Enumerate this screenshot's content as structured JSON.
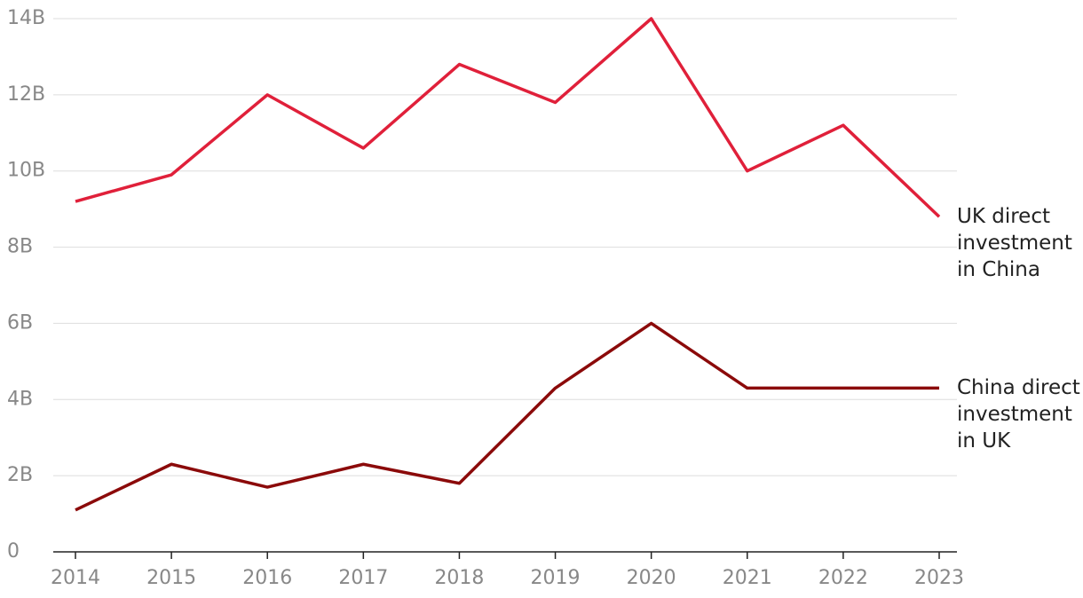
{
  "chart_data": {
    "type": "line",
    "x": [
      2014,
      2015,
      2016,
      2017,
      2018,
      2019,
      2020,
      2021,
      2022,
      2023
    ],
    "xlim": [
      2014,
      2023
    ],
    "xticks": [
      2014,
      2015,
      2016,
      2017,
      2018,
      2019,
      2020,
      2021,
      2022,
      2023
    ],
    "ylim": [
      0,
      14
    ],
    "yticks": [
      0,
      {
        "value": 2,
        "label": "2B"
      },
      {
        "value": 4,
        "label": "4B"
      },
      {
        "value": 6,
        "label": "6B"
      },
      {
        "value": 8,
        "label": "8B"
      },
      {
        "value": 10,
        "label": "10B"
      },
      {
        "value": 12,
        "label": "12B"
      },
      {
        "value": 14,
        "label": "14B"
      }
    ],
    "grid": true,
    "series": [
      {
        "name": "UK direct investment in China",
        "color": "#e0203a",
        "values": [
          9.2,
          9.9,
          12.0,
          10.6,
          12.8,
          11.8,
          14.0,
          10.0,
          11.2,
          8.8
        ]
      },
      {
        "name": "China direct investment in UK",
        "color": "#8b0a0a",
        "values": [
          1.1,
          2.3,
          1.7,
          2.3,
          1.8,
          4.3,
          6.0,
          4.3,
          4.3,
          4.3
        ]
      }
    ]
  }
}
